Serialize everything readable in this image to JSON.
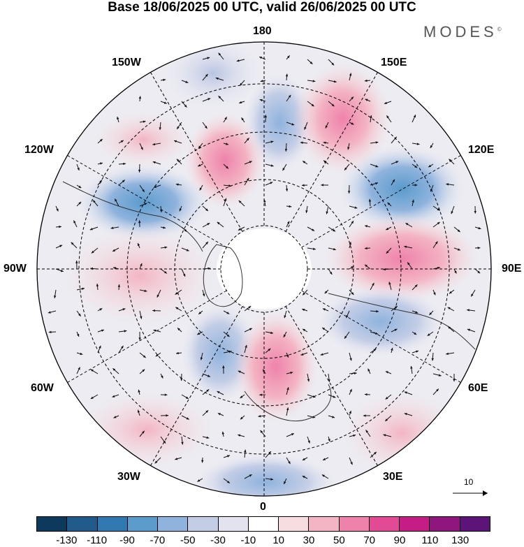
{
  "title": "Base 18/06/2025 00 UTC, valid 26/06/2025 00 UTC",
  "brand": "MODES",
  "brand_mark": "©",
  "longitude_labels": {
    "lon_180": "180",
    "lon_150w": "150W",
    "lon_150e": "150E",
    "lon_120w": "120W",
    "lon_120e": "120E",
    "lon_90w": "90W",
    "lon_90e": "90E",
    "lon_60w": "60W",
    "lon_60e": "60E",
    "lon_30w": "30W",
    "lon_30e": "30E",
    "lon_0": "0"
  },
  "reference_vector": "10",
  "colorbar": {
    "colors": [
      "#0d3a5c",
      "#1f5a8a",
      "#2f78b0",
      "#5a9bcc",
      "#8fb3dd",
      "#c3cde6",
      "#e3e3f0",
      "#ffffff",
      "#f7dddf",
      "#f3b4c3",
      "#ef82ab",
      "#e34a95",
      "#c41d86",
      "#8e167d",
      "#5c1478"
    ],
    "ticks": [
      "-130",
      "-110",
      "-90",
      "-70",
      "-50",
      "-30",
      "-10",
      "10",
      "30",
      "50",
      "70",
      "90",
      "110",
      "130"
    ]
  },
  "anomalies": [
    {
      "name": "neg-150w",
      "value": -30
    },
    {
      "name": "pos-150w-mid",
      "value": 30
    },
    {
      "name": "neg-north-pacific",
      "value": -50
    },
    {
      "name": "pos-north-pacific",
      "value": 50
    },
    {
      "name": "pos-east-siberia",
      "value": 60
    },
    {
      "name": "neg-120w",
      "value": -60
    },
    {
      "name": "neg-120e",
      "value": -70
    },
    {
      "name": "pos-90w",
      "value": 30
    },
    {
      "name": "pos-90e",
      "value": 50
    },
    {
      "name": "neg-70e",
      "value": -40
    },
    {
      "name": "neg-atlantic",
      "value": -50
    },
    {
      "name": "pos-scandinavia",
      "value": 50
    },
    {
      "name": "pos-30w",
      "value": 30
    },
    {
      "name": "pos-30e",
      "value": 20
    },
    {
      "name": "neg-0",
      "value": -20
    }
  ]
}
